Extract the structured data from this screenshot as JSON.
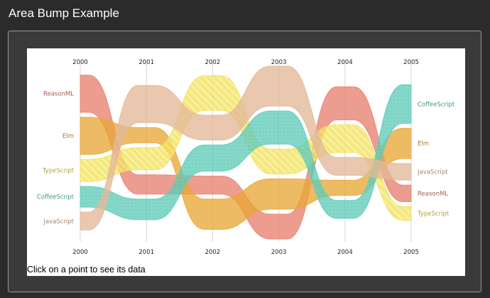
{
  "page": {
    "title": "Area Bump Example"
  },
  "hint": "Click on a point to see its data",
  "chart_data": {
    "type": "area",
    "variant": "area-bump",
    "x": [
      "2000",
      "2001",
      "2002",
      "2003",
      "2004",
      "2005"
    ],
    "grid": true,
    "series": [
      {
        "name": "ReasonML",
        "color": "#e8826f",
        "pattern": "none",
        "ranks": [
          1,
          4,
          4,
          5,
          1,
          4
        ],
        "values": [
          27,
          14,
          13,
          18,
          24,
          12
        ]
      },
      {
        "name": "Elm",
        "color": "#e8a838",
        "pattern": "none",
        "ranks": [
          2,
          2,
          5,
          4,
          4,
          2
        ],
        "values": [
          27,
          11,
          22,
          22,
          11,
          22
        ]
      },
      {
        "name": "TypeScript",
        "color": "#f1e15b",
        "pattern": "lines",
        "ranks": [
          3,
          3,
          1,
          3,
          2,
          5
        ],
        "values": [
          16,
          16,
          25,
          18,
          20,
          10
        ]
      },
      {
        "name": "CoffeeScript",
        "color": "#61cdbb",
        "pattern": "dots",
        "ranks": [
          4,
          5,
          3,
          2,
          5,
          1
        ],
        "values": [
          15,
          15,
          19,
          24,
          13,
          28
        ]
      },
      {
        "name": "JavaScript",
        "color": "#e3b999",
        "pattern": "none",
        "ranks": [
          5,
          1,
          2,
          1,
          3,
          3
        ],
        "values": [
          13,
          27,
          18,
          29,
          13,
          12
        ]
      }
    ]
  }
}
